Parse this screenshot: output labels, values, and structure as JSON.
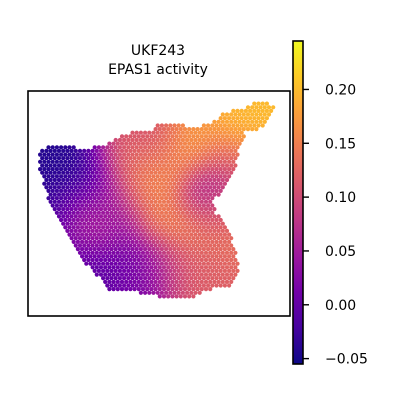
{
  "chart_data": {
    "type": "heatmap",
    "subtype": "spatial-transcriptomics-spot-map",
    "title": "UKF243",
    "subtitle": "EPAS1 activity",
    "xlabel": "",
    "ylabel": "",
    "grid": false,
    "colormap": "plasma",
    "colorbar": {
      "location": "right",
      "min": -0.055,
      "max": 0.245,
      "ticks": [
        -0.05,
        0.0,
        0.05,
        0.1,
        0.15,
        0.2
      ],
      "tick_labels": [
        "−0.05",
        "0.00",
        "0.05",
        "0.10",
        "0.15",
        "0.20"
      ]
    },
    "hotspots": [
      {
        "x": 0.17,
        "y": 0.3,
        "value": -0.045
      },
      {
        "x": 0.07,
        "y": 0.4,
        "value": -0.04
      },
      {
        "x": 0.1,
        "y": 0.55,
        "value": -0.03
      },
      {
        "x": 0.24,
        "y": 0.45,
        "value": -0.02
      },
      {
        "x": 0.2,
        "y": 0.75,
        "value": -0.01
      },
      {
        "x": 0.3,
        "y": 0.58,
        "value": 0.0
      },
      {
        "x": 0.45,
        "y": 0.8,
        "value": 0.01
      },
      {
        "x": 0.7,
        "y": 0.45,
        "value": 0.03
      },
      {
        "x": 0.5,
        "y": 0.35,
        "value": 0.17
      },
      {
        "x": 0.62,
        "y": 0.22,
        "value": 0.18
      },
      {
        "x": 0.86,
        "y": 0.12,
        "value": 0.2
      },
      {
        "x": 0.4,
        "y": 0.45,
        "value": 0.15
      },
      {
        "x": 0.55,
        "y": 0.6,
        "value": 0.16
      },
      {
        "x": 0.75,
        "y": 0.55,
        "value": 0.14
      },
      {
        "x": 0.35,
        "y": 0.28,
        "value": 0.13
      },
      {
        "x": 0.8,
        "y": 0.3,
        "value": 0.12
      },
      {
        "x": 0.6,
        "y": 0.8,
        "value": 0.12
      },
      {
        "x": 0.22,
        "y": 0.58,
        "value": 0.14
      },
      {
        "x": 0.47,
        "y": 0.22,
        "value": 0.09
      }
    ],
    "value_range": [
      -0.05,
      0.24
    ]
  },
  "colors": {
    "plasma": [
      "#0d0887",
      "#46039f",
      "#7201a8",
      "#9c179e",
      "#bd3786",
      "#d8576b",
      "#ed7953",
      "#fb9f3a",
      "#fdca26",
      "#f0f921"
    ],
    "frame": "#000000",
    "background": "#ffffff"
  }
}
